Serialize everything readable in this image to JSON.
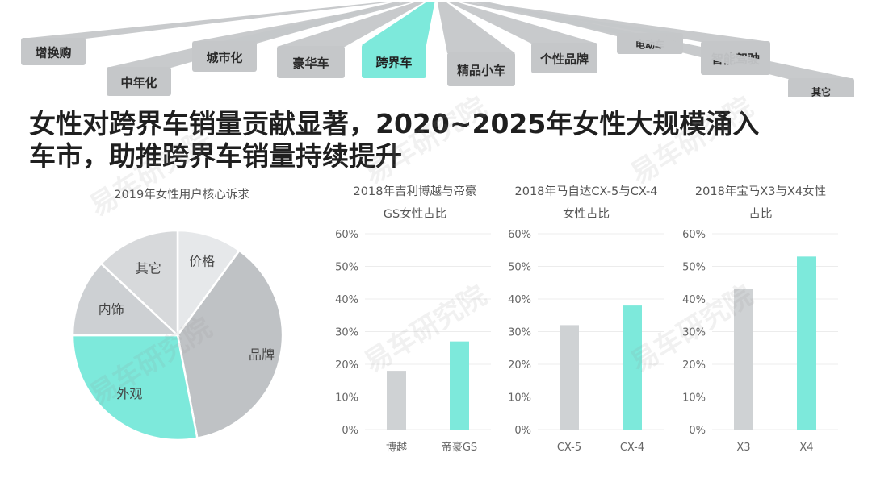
{
  "colors": {
    "teal": "#7de9db",
    "gray_light": "#e6e8ea",
    "gray_mid": "#cdd0d3",
    "gray_dark": "#bfc2c5",
    "gray_bar": "#cfd2d4",
    "banner_gray": "#c5c7c9",
    "text_dark": "#1f1f1f",
    "text_label": "#555555"
  },
  "watermark": "易车研究院",
  "banner": {
    "tabs": [
      {
        "label": "增换购",
        "highlight": false
      },
      {
        "label": "中年化",
        "highlight": false
      },
      {
        "label": "城市化",
        "highlight": false
      },
      {
        "label": "豪华车",
        "highlight": false
      },
      {
        "label": "跨界车",
        "highlight": true
      },
      {
        "label": "精品小车",
        "highlight": false
      },
      {
        "label": "个性品牌",
        "highlight": false
      },
      {
        "label": "电动车",
        "highlight": false
      },
      {
        "label": "智能驾驶",
        "highlight": false
      },
      {
        "label": "其它",
        "highlight": false
      }
    ]
  },
  "headline": {
    "line1": "女性对跨界车销量贡献显著，2020~2025年女性大规模涌入",
    "line2": "车市，助推跨界车销量持续提升"
  },
  "chart_data": [
    {
      "type": "pie",
      "title": "2019年女性用户核心诉求",
      "labels": [
        "价格",
        "品牌",
        "外观",
        "内饰",
        "其它"
      ],
      "values": [
        10,
        37,
        28,
        12,
        13
      ],
      "colors": [
        "#e6e8ea",
        "#bfc2c5",
        "#7de9db",
        "#cdd0d3",
        "#d7d9db"
      ],
      "legend": "none"
    },
    {
      "type": "bar",
      "title": "2018年吉利博越与帝豪GS女性占比",
      "categories": [
        "博越",
        "帝豪GS"
      ],
      "values": [
        0.18,
        0.27
      ],
      "colors": [
        "#cfd2d4",
        "#7de9db"
      ],
      "ylim": [
        0,
        0.6
      ],
      "yticks": [
        "0%",
        "10%",
        "20%",
        "30%",
        "40%",
        "50%",
        "60%"
      ],
      "grid": true
    },
    {
      "type": "bar",
      "title": "2018年马自达CX-5与CX-4女性占比",
      "categories": [
        "CX-5",
        "CX-4"
      ],
      "values": [
        0.32,
        0.38
      ],
      "colors": [
        "#cfd2d4",
        "#7de9db"
      ],
      "ylim": [
        0,
        0.6
      ],
      "yticks": [
        "0%",
        "10%",
        "20%",
        "30%",
        "40%",
        "50%",
        "60%"
      ],
      "grid": true
    },
    {
      "type": "bar",
      "title": "2018年宝马X3与X4女性占比",
      "categories": [
        "X3",
        "X4"
      ],
      "values": [
        0.43,
        0.53
      ],
      "colors": [
        "#cfd2d4",
        "#7de9db"
      ],
      "ylim": [
        0,
        0.6
      ],
      "yticks": [
        "0%",
        "10%",
        "20%",
        "30%",
        "40%",
        "50%",
        "60%"
      ],
      "grid": true
    }
  ]
}
